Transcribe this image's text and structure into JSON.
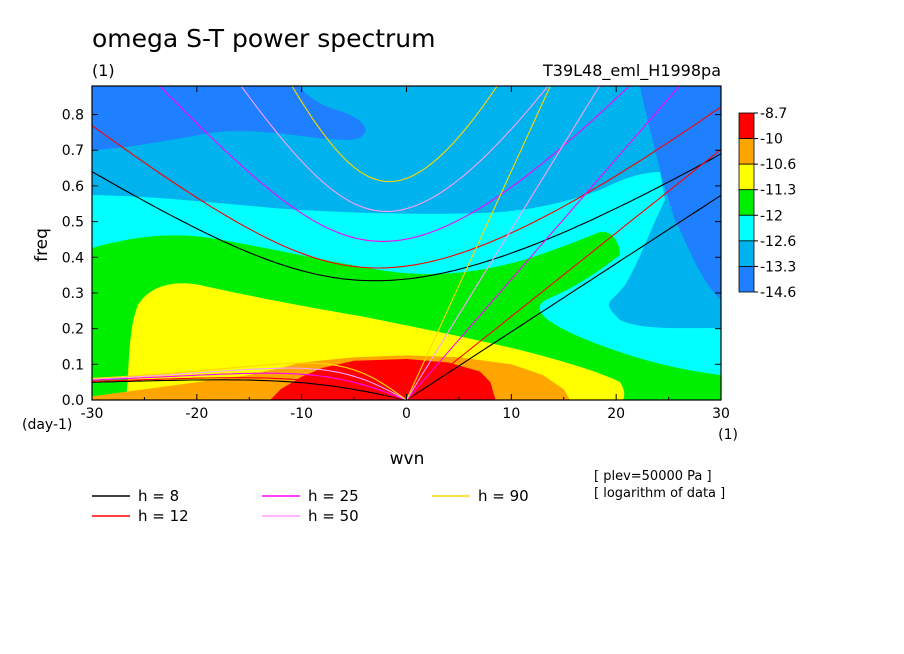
{
  "chart_data": {
    "type": "contour",
    "title": "omega S-T power spectrum",
    "units_label": "(1)",
    "run_label": "T39L48_eml_H1998pa",
    "xlabel": "wvn",
    "ylabel": "freq",
    "x_unit_label": "(1)",
    "y_unit_label": "(day-1)",
    "xlim": [
      -30,
      30
    ],
    "ylim": [
      0,
      0.88
    ],
    "xticks": [
      -30,
      -20,
      -10,
      0,
      10,
      20,
      30
    ],
    "xtick_labels": [
      "-30",
      "-20",
      "-10",
      "0",
      "10",
      "20",
      "30"
    ],
    "yticks": [
      0,
      0.1,
      0.2,
      0.3,
      0.4,
      0.5,
      0.6,
      0.7,
      0.8
    ],
    "ytick_labels": [
      "0.0",
      "0.1",
      "0.2",
      "0.3",
      "0.4",
      "0.5",
      "0.6",
      "0.7",
      "0.8"
    ],
    "colorbar": {
      "labels": [
        "-8.7",
        "-10",
        "-10.6",
        "-11.3",
        "-12",
        "-12.6",
        "-13.3",
        "-14.6"
      ],
      "colors": [
        "#ff0000",
        "#ffa500",
        "#ffff00",
        "#00ee00",
        "#00ffff",
        "#00b2ee",
        "#1e7fff"
      ]
    },
    "contour_levels": [
      {
        "level": -10,
        "color": "#ffa500",
        "boundary": [
          [
            -30,
            0
          ],
          [
            -30,
            0.01
          ],
          [
            -25,
            0.03
          ],
          [
            -20,
            0.05
          ],
          [
            -15,
            0.07
          ],
          [
            -12,
            0.09
          ],
          [
            -10,
            0.105
          ],
          [
            -5,
            0.12
          ],
          [
            0,
            0.125
          ],
          [
            5,
            0.12
          ],
          [
            10,
            0.1
          ],
          [
            13,
            0.07
          ],
          [
            15,
            0.03
          ],
          [
            15.6,
            0
          ],
          [
            -30,
            0
          ]
        ]
      },
      {
        "level": -8.7,
        "color": "#ff0000",
        "boundary": [
          [
            -13,
            0
          ],
          [
            -12,
            0.03
          ],
          [
            -10,
            0.065
          ],
          [
            -8,
            0.09
          ],
          [
            -5,
            0.11
          ],
          [
            0,
            0.115
          ],
          [
            4,
            0.105
          ],
          [
            7,
            0.08
          ],
          [
            8,
            0.05
          ],
          [
            8.5,
            0
          ],
          [
            -13,
            0
          ]
        ]
      }
    ],
    "legend": [
      {
        "label": "h =  8",
        "color": "#000000"
      },
      {
        "label": "h = 12",
        "color": "#ff0000"
      },
      {
        "label": "h = 25",
        "color": "#ff00ff"
      },
      {
        "label": "h = 50",
        "color": "#ff9eff"
      },
      {
        "label": "h = 90",
        "color": "#ffd700"
      }
    ],
    "dispersion_curves": {
      "equivalent_depths_m": [
        8,
        12,
        25,
        50,
        90
      ],
      "families": [
        "kelvin",
        "n=1 equatorial rossby",
        "n=1 inertio-gravity"
      ]
    },
    "annotations": [
      "[ plev=50000 Pa ]",
      "[ logarithm of data ]"
    ]
  }
}
